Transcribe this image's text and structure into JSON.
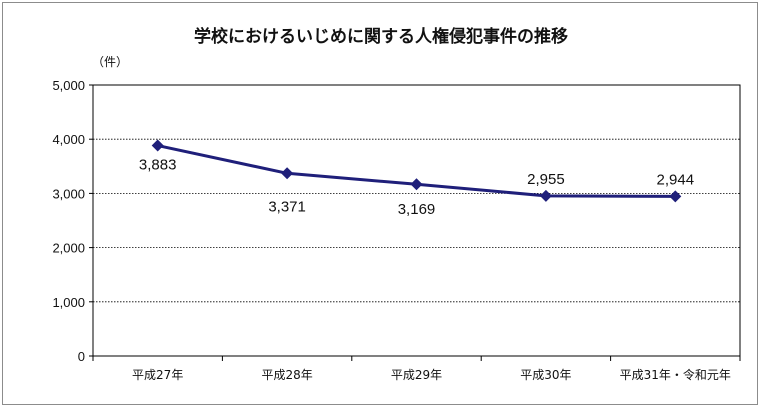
{
  "chart_data": {
    "type": "line",
    "title": "学校におけるいじめに関する人権侵犯事件の推移",
    "unit": "（件）",
    "categories": [
      "平成27年",
      "平成28年",
      "平成29年",
      "平成30年",
      "平成31年・令和元年"
    ],
    "values": [
      3883,
      3371,
      3169,
      2955,
      2944
    ],
    "data_labels": [
      "3,883",
      "3,371",
      "3,169",
      "2,955",
      "2,944"
    ],
    "yticks": [
      "0",
      "1,000",
      "2,000",
      "3,000",
      "4,000",
      "5,000"
    ],
    "ylim": [
      0,
      5000
    ],
    "grid": true,
    "legend": "none",
    "line_color": "#1f1f7a"
  }
}
